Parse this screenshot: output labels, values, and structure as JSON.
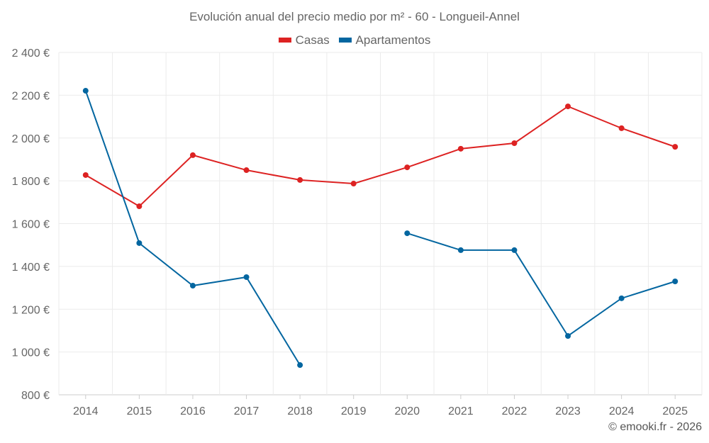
{
  "chart_data": {
    "type": "line",
    "title": "Evolución anual del precio medio por m² - 60 - Longueil-Annel",
    "categories": [
      "2014",
      "2015",
      "2016",
      "2017",
      "2018",
      "2019",
      "2020",
      "2021",
      "2022",
      "2023",
      "2024",
      "2025"
    ],
    "series": [
      {
        "name": "Casas",
        "color": "#dd2222",
        "values": [
          1827,
          1681,
          1920,
          1850,
          1804,
          1787,
          1863,
          1950,
          1976,
          2148,
          2046,
          1959
        ]
      },
      {
        "name": "Apartamentos",
        "color": "#0366a0",
        "values": [
          2221,
          1509,
          1310,
          1350,
          939,
          null,
          1555,
          1476,
          1476,
          1075,
          1251,
          1330
        ]
      }
    ],
    "ylim": [
      800,
      2400
    ],
    "yticks": [
      800,
      1000,
      1200,
      1400,
      1600,
      1800,
      2000,
      2200,
      2400
    ],
    "ytick_labels": [
      "800 €",
      "1 000 €",
      "1 200 €",
      "1 400 €",
      "1 600 €",
      "1 800 €",
      "2 000 €",
      "2 200 €",
      "2 400 €"
    ],
    "xlabel": "",
    "ylabel": "",
    "grid": true,
    "legend": "top-center"
  },
  "credit": "© emooki.fr - 2026"
}
